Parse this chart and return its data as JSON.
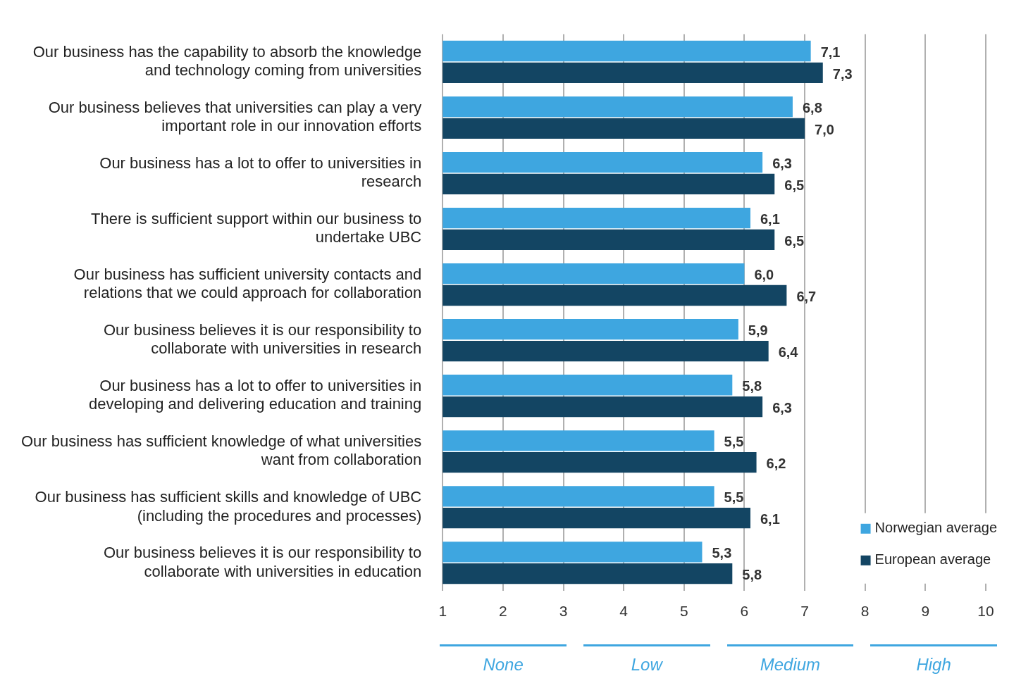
{
  "chart_data": {
    "type": "bar",
    "orientation": "horizontal",
    "categories": [
      "Our business has the capability to absorb the knowledge and technology coming from universities",
      "Our business believes that universities can play a very important role in our innovation efforts",
      "Our business has a lot to offer to universities in research",
      "There is sufficient support within our business to undertake UBC",
      "Our business has sufficient university contacts and relations that we could approach for collaboration",
      "Our business believes it is our responsibility to collaborate with universities in research",
      "Our business has a lot to offer to universities in developing and delivering education and training",
      "Our business has sufficient knowledge of what universities want from collaboration",
      "Our business has sufficient skills and knowledge of UBC (including the procedures and processes)",
      "Our business believes it is our responsibility to collaborate with universities in education"
    ],
    "series": [
      {
        "name": "Norwegian average",
        "color": "#3ea6e0",
        "values": [
          7.1,
          6.8,
          6.3,
          6.1,
          6.0,
          5.9,
          5.8,
          5.5,
          5.5,
          5.3
        ],
        "value_labels": [
          "7,1",
          "6,8",
          "6,3",
          "6,1",
          "6,0",
          "5,9",
          "5,8",
          "5,5",
          "5,5",
          "5,3"
        ]
      },
      {
        "name": "European average",
        "color": "#134563",
        "values": [
          7.3,
          7.0,
          6.5,
          6.5,
          6.7,
          6.4,
          6.3,
          6.2,
          6.1,
          5.8
        ],
        "value_labels": [
          "7,3",
          "7,0",
          "6,5",
          "6,5",
          "6,7",
          "6,4",
          "6,3",
          "6,2",
          "6,1",
          "5,8"
        ]
      }
    ],
    "xlim": [
      1,
      10
    ],
    "xticks": [
      1,
      2,
      3,
      4,
      5,
      6,
      7,
      8,
      9,
      10
    ],
    "grid": "x",
    "legend": "bottom right",
    "annotations": [
      "None",
      "Low",
      "Medium",
      "High"
    ]
  }
}
